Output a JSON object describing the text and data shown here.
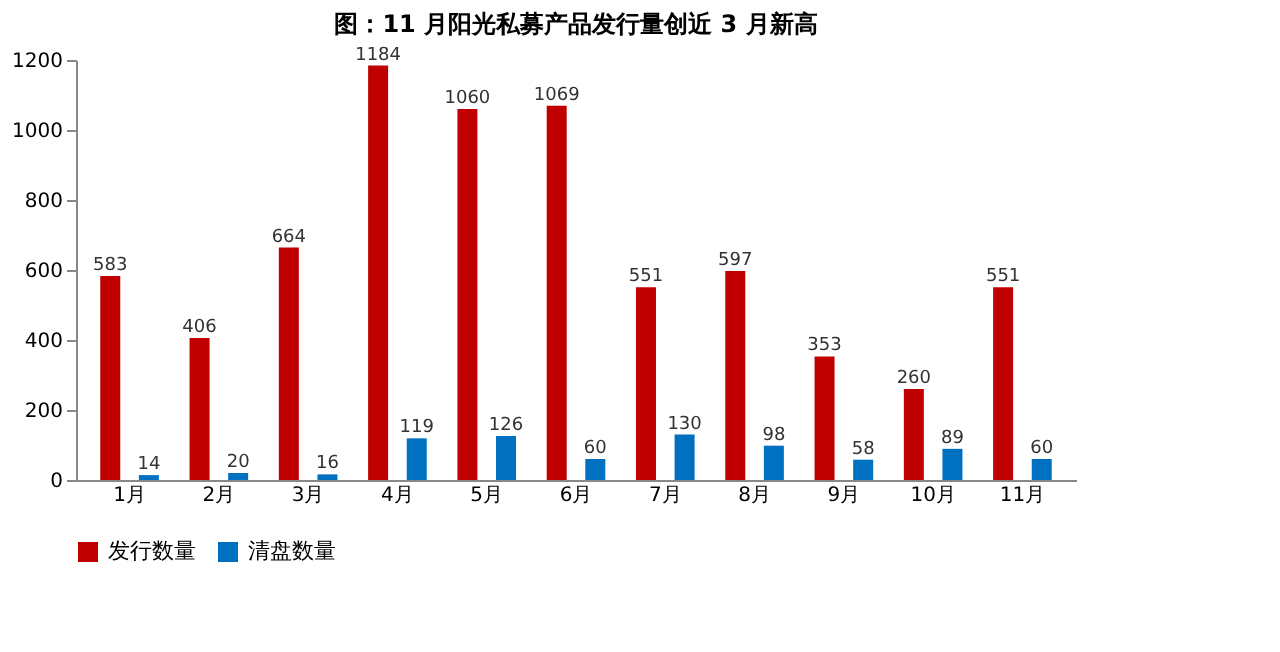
{
  "chart_data": {
    "type": "bar",
    "title": "图：11 月阳光私募产品发行量创近 3 月新高",
    "categories": [
      "1月",
      "2月",
      "3月",
      "4月",
      "5月",
      "6月",
      "7月",
      "8月",
      "9月",
      "10月",
      "11月"
    ],
    "series": [
      {
        "name": "发行数量",
        "color": "#c00000",
        "values": [
          583,
          406,
          664,
          1184,
          1060,
          1069,
          551,
          597,
          353,
          260,
          551
        ]
      },
      {
        "name": "清盘数量",
        "color": "#0070c0",
        "values": [
          14,
          20,
          16,
          119,
          126,
          60,
          130,
          98,
          58,
          89,
          60
        ]
      }
    ],
    "ylim": [
      0,
      1200
    ],
    "yticks": [
      0,
      200,
      400,
      600,
      800,
      1000,
      1200
    ],
    "grid": false,
    "legend": "bottom",
    "data_labels": true
  }
}
